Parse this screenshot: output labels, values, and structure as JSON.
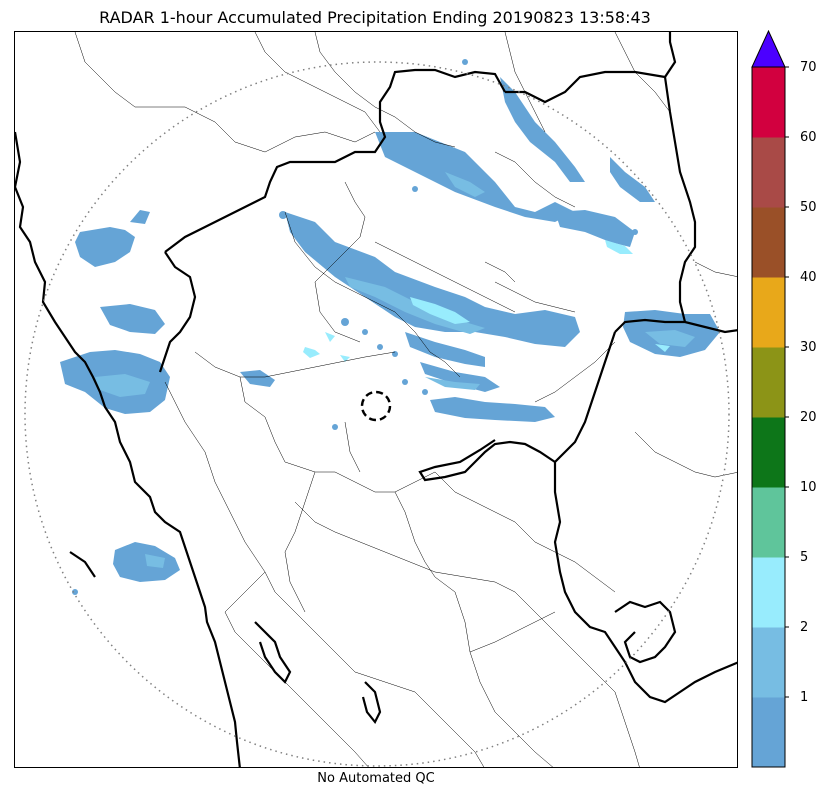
{
  "title": "RADAR 1-hour Accumulated Precipitation Ending 20190823 13:58:43",
  "footer": "No Automated QC",
  "map_layers": {
    "coastline": "thick black",
    "state_borders": "thick black",
    "district_borders": "thin black",
    "radar_range_ring": "dotted gray",
    "radar_center_marker": "dashed black circle"
  },
  "colorbar": {
    "extend": "max",
    "extend_color": "#4b00ff",
    "ticks": [
      "1",
      "2",
      "5",
      "10",
      "20",
      "30",
      "40",
      "50",
      "60",
      "70"
    ],
    "colors": [
      "#65a4d6",
      "#77bde3",
      "#98ecfd",
      "#5fc59b",
      "#0d7619",
      "#8c9417",
      "#e8a81a",
      "#9a5028",
      "#a94a47",
      "#d2003f"
    ]
  }
}
